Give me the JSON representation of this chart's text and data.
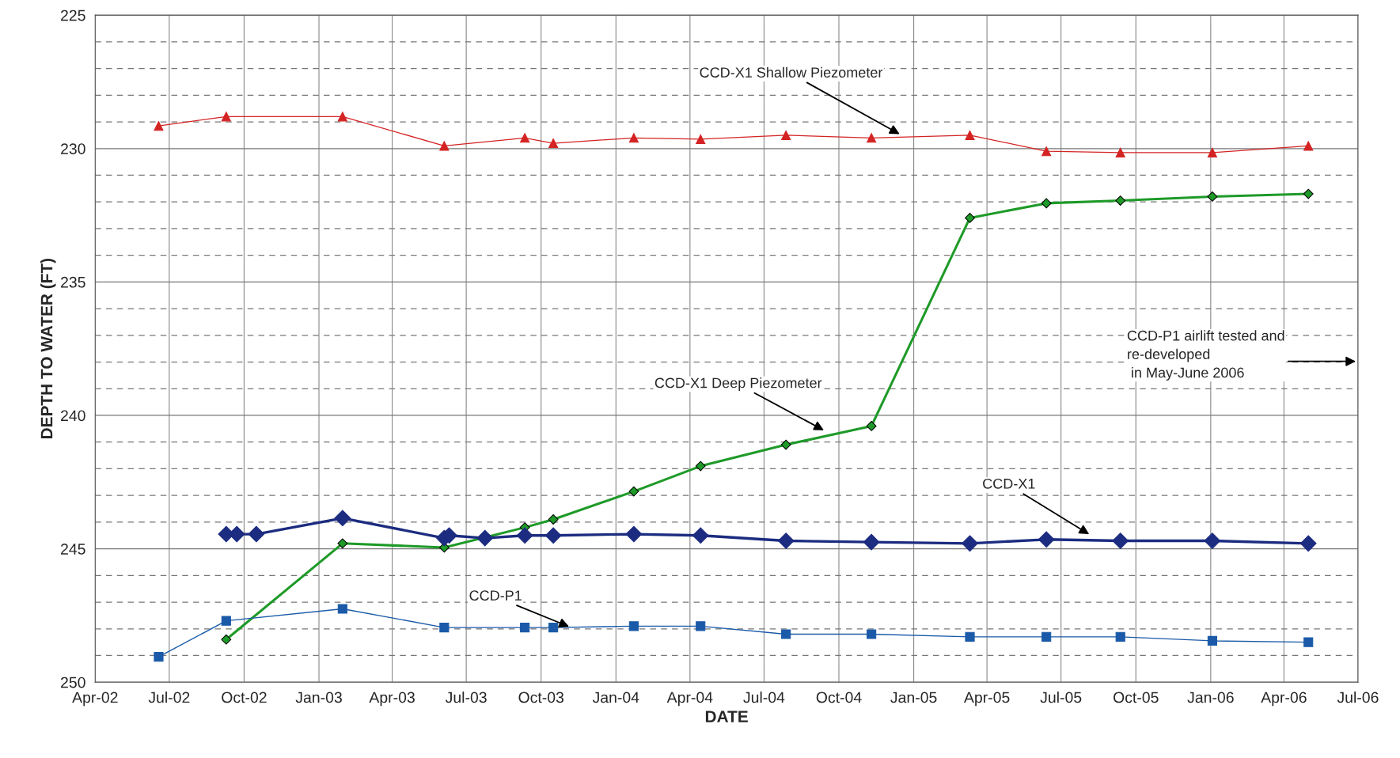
{
  "chart_data": {
    "type": "line",
    "xlabel": "DATE",
    "ylabel": "DEPTH TO WATER (FT)",
    "ylim": [
      250,
      225
    ],
    "yticks": [
      225,
      {
        "value": 226,
        "label": null
      },
      {
        "value": 227,
        "label": null
      },
      {
        "value": 228,
        "label": null
      },
      {
        "value": 229,
        "label": null
      },
      230,
      {
        "value": 231,
        "label": null
      },
      {
        "value": 232,
        "label": null
      },
      {
        "value": 233,
        "label": null
      },
      {
        "value": 234,
        "label": null
      },
      235,
      {
        "value": 236,
        "label": null
      },
      {
        "value": 237,
        "label": null
      },
      {
        "value": 238,
        "label": null
      },
      {
        "value": 239,
        "label": null
      },
      240,
      {
        "value": 241,
        "label": null
      },
      {
        "value": 242,
        "label": null
      },
      {
        "value": 243,
        "label": null
      },
      {
        "value": 244,
        "label": null
      },
      245,
      {
        "value": 246,
        "label": null
      },
      {
        "value": 247,
        "label": null
      },
      {
        "value": 248,
        "label": null
      },
      {
        "value": 249,
        "label": null
      },
      250
    ],
    "xlim": [
      "2002-04-01",
      "2006-07-01"
    ],
    "xticks": [
      {
        "value": "2002-04-01",
        "label": "Apr-02"
      },
      {
        "value": "2002-07-01",
        "label": "Jul-02"
      },
      {
        "value": "2002-10-01",
        "label": "Oct-02"
      },
      {
        "value": "2003-01-01",
        "label": "Jan-03"
      },
      {
        "value": "2003-04-01",
        "label": "Apr-03"
      },
      {
        "value": "2003-07-01",
        "label": "Jul-03"
      },
      {
        "value": "2003-10-01",
        "label": "Oct-03"
      },
      {
        "value": "2004-01-01",
        "label": "Jan-04"
      },
      {
        "value": "2004-04-01",
        "label": "Apr-04"
      },
      {
        "value": "2004-07-01",
        "label": "Jul-04"
      },
      {
        "value": "2004-10-01",
        "label": "Oct-04"
      },
      {
        "value": "2005-01-01",
        "label": "Jan-05"
      },
      {
        "value": "2005-04-01",
        "label": "Apr-05"
      },
      {
        "value": "2005-07-01",
        "label": "Jul-05"
      },
      {
        "value": "2005-10-01",
        "label": "Oct-05"
      },
      {
        "value": "2006-01-01",
        "label": "Jan-06"
      },
      {
        "value": "2006-04-01",
        "label": "Apr-06"
      },
      {
        "value": "2006-07-01",
        "label": "Jul-06"
      }
    ],
    "grid": true,
    "legend": false,
    "series": [
      {
        "color": "#d42323",
        "marker": "triangle",
        "x": [
          "2002-06-18",
          "2002-09-09",
          "2003-01-30",
          "2003-06-04",
          "2003-09-11",
          "2003-10-16",
          "2004-01-23",
          "2004-04-14",
          "2004-07-28",
          "2004-11-10",
          "2005-03-11",
          "2005-06-13",
          "2005-09-12",
          "2006-01-03",
          "2006-05-01"
        ],
        "values": [
          229.15,
          228.8,
          228.8,
          229.9,
          229.6,
          229.8,
          229.6,
          229.65,
          229.5,
          229.6,
          229.5,
          230.1,
          230.15,
          230.15,
          229.9
        ]
      },
      {
        "color": "#1e9a28",
        "marker": "diamond",
        "x": [
          "2002-09-09",
          "2003-01-30",
          "2003-06-04",
          "2003-09-11",
          "2003-10-16",
          "2004-01-23",
          "2004-04-14",
          "2004-07-28",
          "2004-11-10",
          "2005-03-11",
          "2005-06-13",
          "2005-09-12",
          "2006-01-03",
          "2006-05-01"
        ],
        "values": [
          248.4,
          244.8,
          244.95,
          244.2,
          243.9,
          242.85,
          241.9,
          241.1,
          240.4,
          232.6,
          232.05,
          231.95,
          231.8,
          231.7
        ]
      },
      {
        "color": "#1c2c80",
        "marker": "diamond",
        "x": [
          "2002-09-09",
          "2002-09-22",
          "2002-10-16",
          "2003-01-30",
          "2003-06-04",
          "2003-06-10",
          "2003-07-24",
          "2003-09-11",
          "2003-10-16",
          "2004-01-23",
          "2004-04-14",
          "2004-07-28",
          "2004-11-10",
          "2005-03-11",
          "2005-06-13",
          "2005-09-12",
          "2006-01-03",
          "2006-05-01"
        ],
        "values": [
          244.45,
          244.45,
          244.45,
          243.85,
          244.6,
          244.5,
          244.6,
          244.5,
          244.5,
          244.45,
          244.5,
          244.7,
          244.75,
          244.8,
          244.65,
          244.7,
          244.7,
          244.8
        ]
      },
      {
        "color": "#1a5aa8",
        "marker": "square",
        "x": [
          "2002-06-18",
          "2002-09-09",
          "2003-01-30",
          "2003-06-04",
          "2003-09-11",
          "2003-10-16",
          "2004-01-23",
          "2004-04-14",
          "2004-07-28",
          "2004-11-10",
          "2005-03-11",
          "2005-06-13",
          "2005-09-12",
          "2006-01-03",
          "2006-05-01"
        ],
        "values": [
          249.05,
          247.7,
          247.25,
          247.95,
          247.95,
          247.95,
          247.9,
          247.9,
          248.2,
          248.2,
          248.3,
          248.3,
          248.3,
          248.45,
          248.5
        ]
      }
    ],
    "annotations": [
      {
        "text": "CCD-X1 Shallow Piezometer",
        "x": "2004-12-17",
        "y": 229.5
      },
      {
        "text": "CCD-X1 Deep Piezometer",
        "x": "2004-09-15",
        "y": 240.6
      },
      {
        "text": "CCD-X1",
        "x": "2005-08-07",
        "y": 244.5
      },
      {
        "text": "CCD-P1",
        "x": "2003-11-07",
        "y": 247.95
      },
      "CCD-P1 airlift tested and\nre-developed\n in May-June 2006"
    ]
  }
}
